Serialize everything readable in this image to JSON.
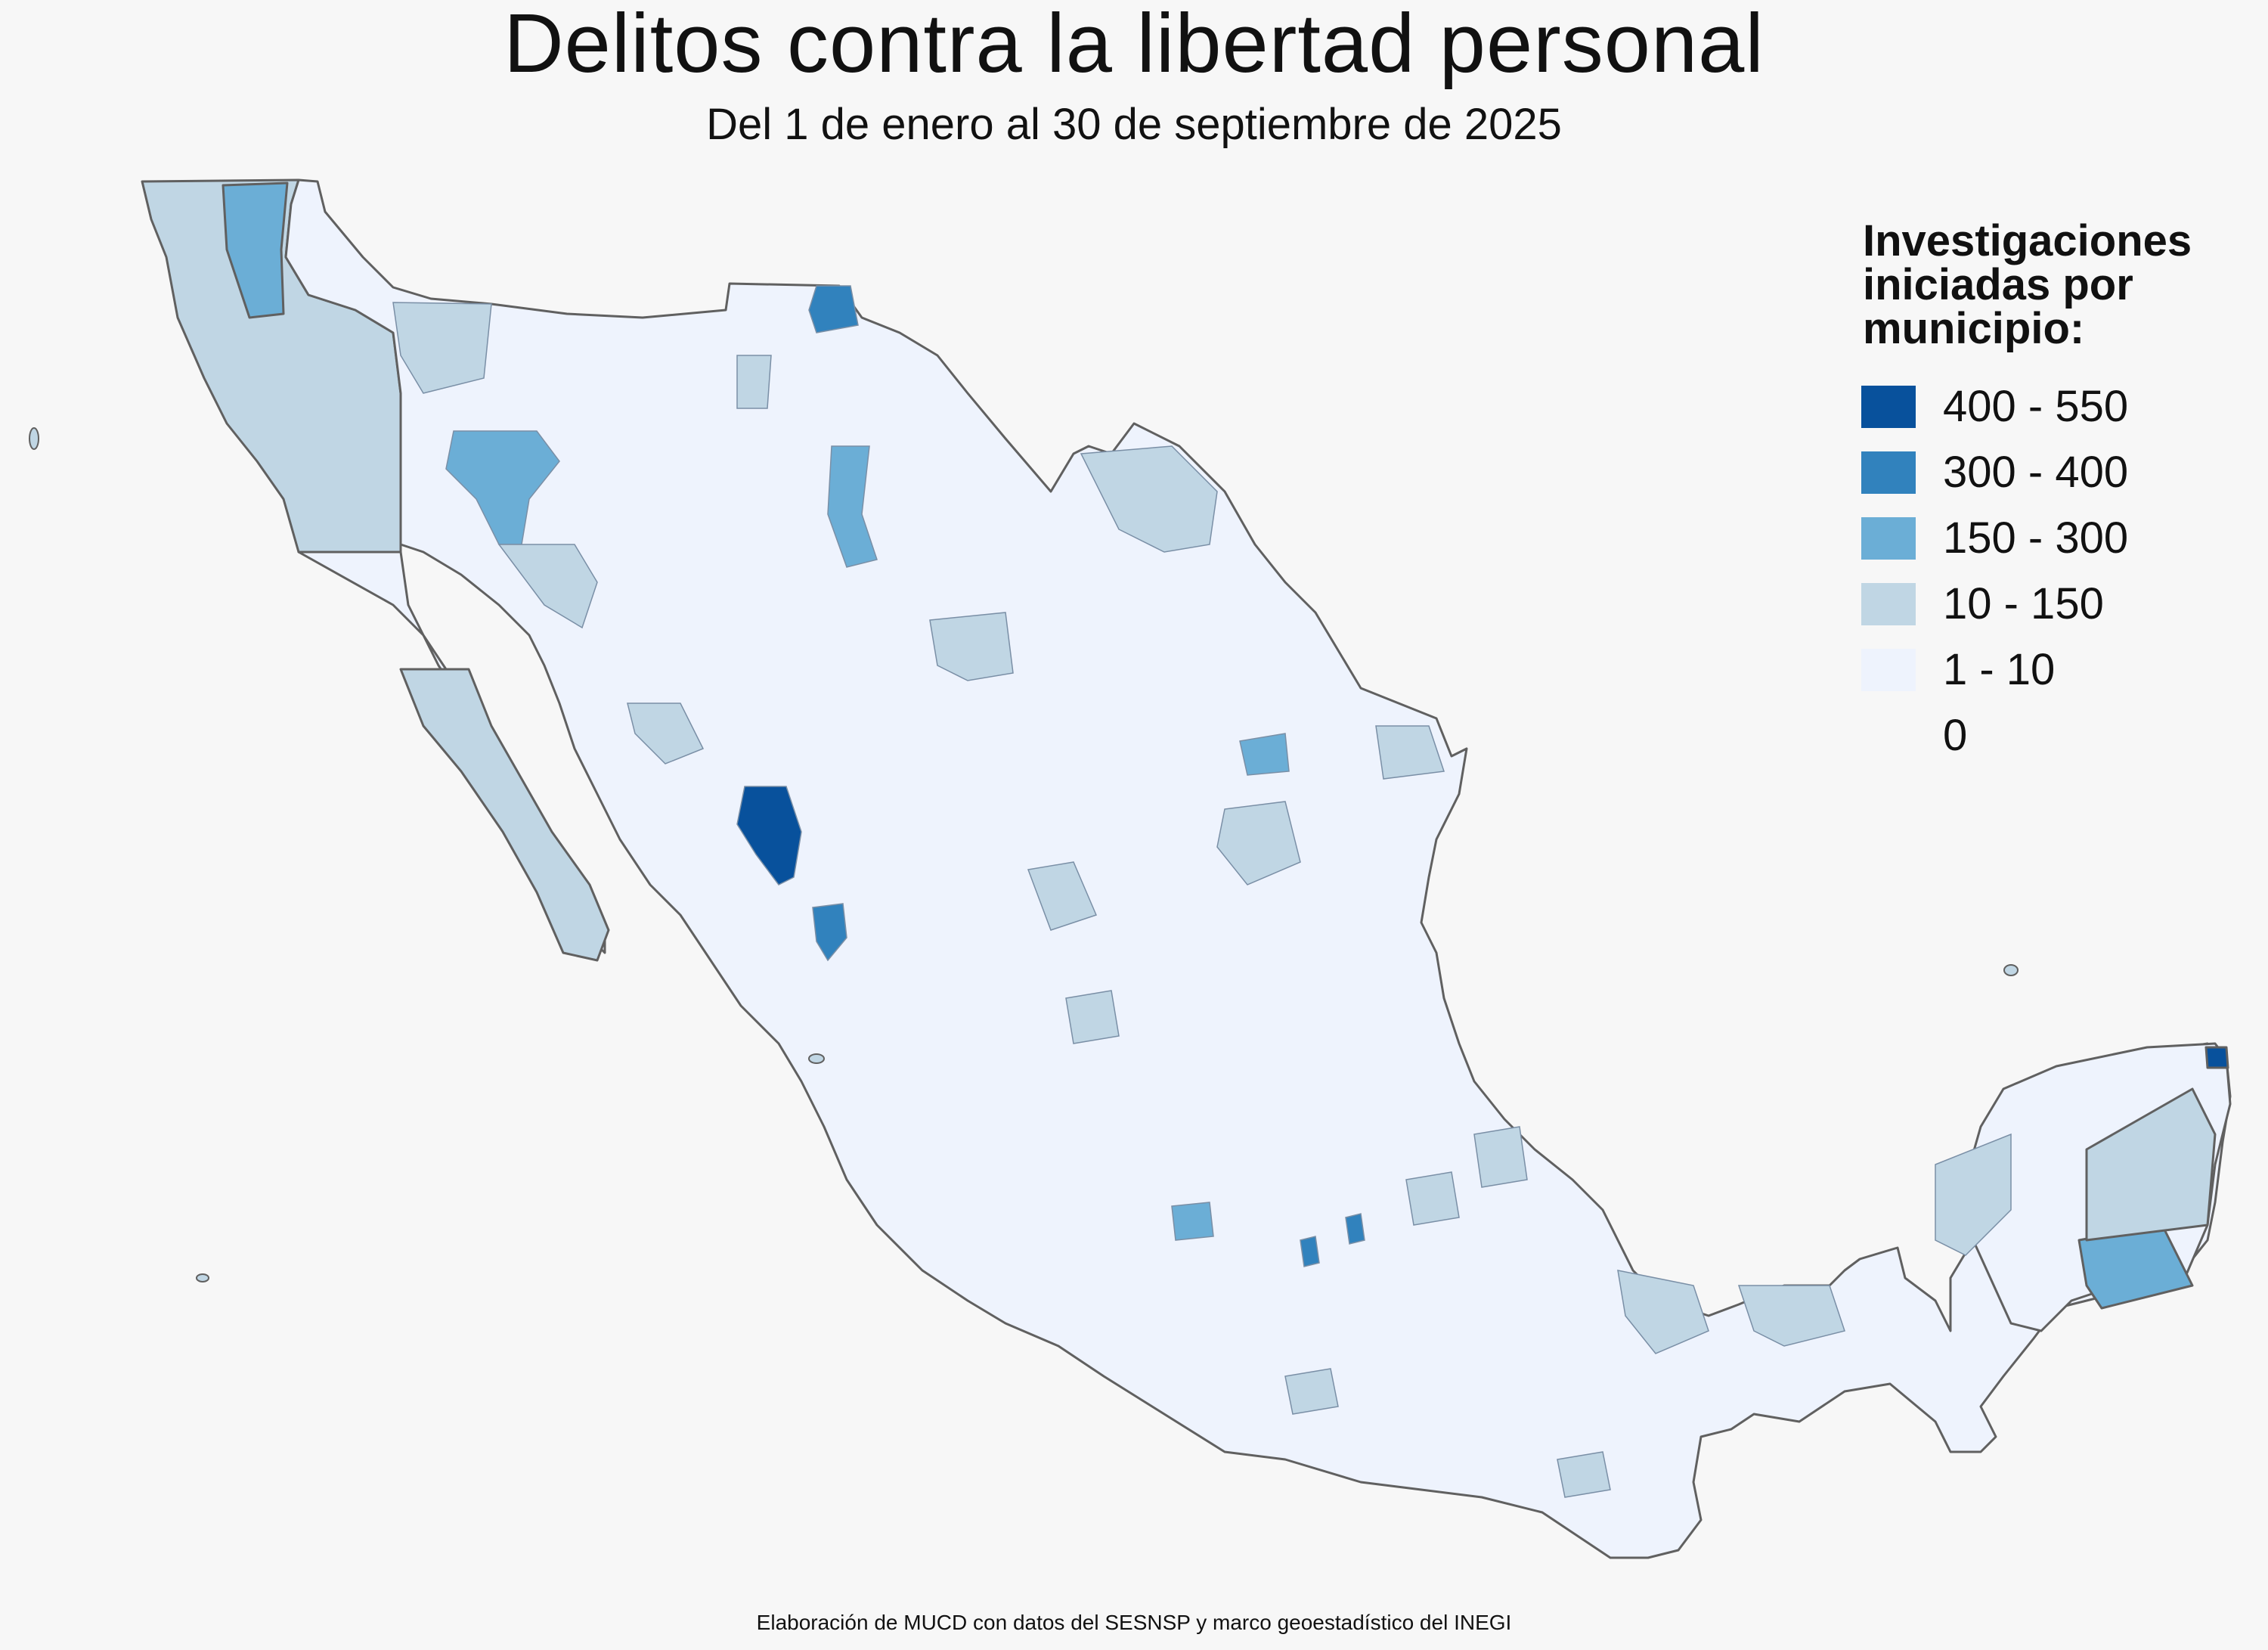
{
  "header": {
    "title": "Delitos contra la libertad personal",
    "subtitle": "Del 1 de enero al 30 de septiembre de 2025"
  },
  "legend": {
    "title_lines": [
      "Investigaciones",
      "iniciadas por",
      "municipio:"
    ],
    "items": [
      {
        "label": "400 - 550",
        "color": "#08519c"
      },
      {
        "label": "300 - 400",
        "color": "#3182bd"
      },
      {
        "label": "150 - 300",
        "color": "#6baed6"
      },
      {
        "label": "10 - 150",
        "color": "#c0d6e4"
      },
      {
        "label": "1 - 10",
        "color": "#eef3fd"
      },
      {
        "label": "0",
        "color": "#f7f7f7"
      }
    ]
  },
  "map": {
    "region": "Mexico",
    "unit": "municipio",
    "border_color": "#555555"
  },
  "footer": {
    "source": "Elaboración de MUCD con datos del SESNSP y marco geoestadístico del INEGI"
  }
}
